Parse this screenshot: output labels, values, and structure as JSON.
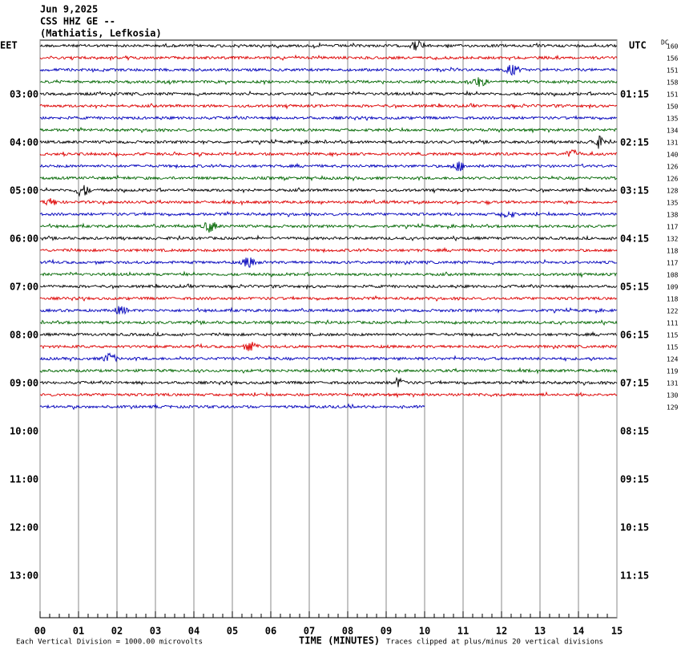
{
  "header": {
    "date": "Jun 9,2025",
    "station": "CSS HHZ GE --",
    "location": "(Mathiatis, Lefkosia)"
  },
  "left_axis": {
    "title": "EET",
    "labels": [
      "03:00",
      "04:00",
      "05:00",
      "06:00",
      "07:00",
      "08:00",
      "09:00",
      "10:00",
      "11:00",
      "12:00",
      "13:00"
    ]
  },
  "right_axis": {
    "title": "UTC",
    "labels": [
      "01:15",
      "02:15",
      "03:15",
      "04:15",
      "05:15",
      "06:15",
      "07:15",
      "08:15",
      "09:15",
      "10:15",
      "11:15"
    ]
  },
  "dc": {
    "title": "DC",
    "values": [
      "160",
      "156",
      "151",
      "158",
      "151",
      "150",
      "135",
      "134",
      "131",
      "140",
      "126",
      "126",
      "128",
      "135",
      "138",
      "117",
      "132",
      "118",
      "117",
      "108",
      "109",
      "118",
      "122",
      "111",
      "115",
      "115",
      "124",
      "119",
      "131",
      "130",
      "129"
    ]
  },
  "x_axis": {
    "title": "TIME (MINUTES)",
    "ticks": [
      "00",
      "01",
      "02",
      "03",
      "04",
      "05",
      "06",
      "07",
      "08",
      "09",
      "10",
      "11",
      "12",
      "13",
      "14",
      "15"
    ]
  },
  "footer": {
    "scale": "Each Vertical Division = 1000.00 microvolts",
    "clip": "Traces clipped at plus/minus 20 vertical divisions"
  }
}
